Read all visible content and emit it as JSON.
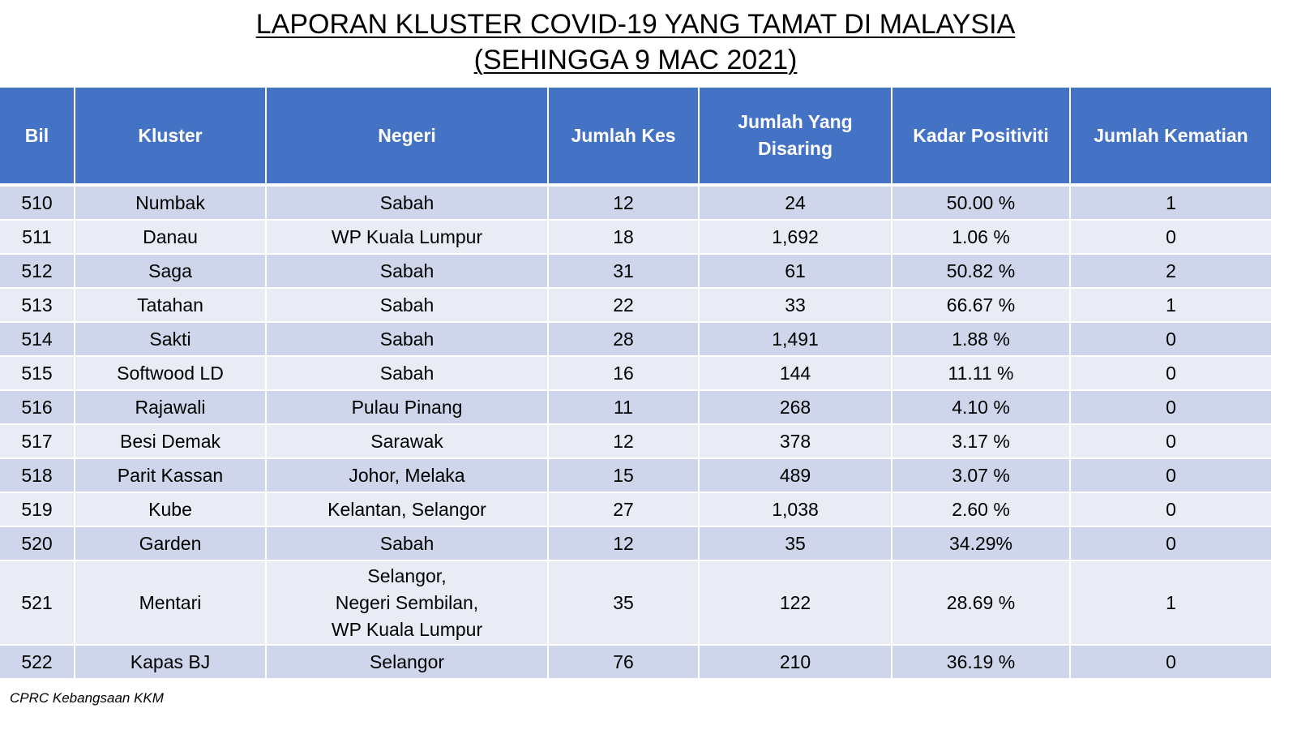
{
  "title": {
    "line1": "LAPORAN KLUSTER COVID-19 YANG TAMAT DI MALAYSIA",
    "line2": "(SEHINGGA 9 MAC 2021)"
  },
  "table": {
    "headers": {
      "bil": "Bil",
      "kluster": "Kluster",
      "negeri": "Negeri",
      "jumlah_kes": "Jumlah Kes",
      "jumlah_disaring_1": "Jumlah Yang",
      "jumlah_disaring_2": "Disaring",
      "kadar_positiviti": "Kadar Positiviti",
      "jumlah_kematian": "Jumlah Kematian"
    },
    "rows": [
      {
        "bil": "510",
        "kluster": "Numbak",
        "negeri": [
          "Sabah"
        ],
        "kes": "12",
        "disaring": "24",
        "positiviti": "50.00 %",
        "kematian": "1"
      },
      {
        "bil": "511",
        "kluster": "Danau",
        "negeri": [
          "WP Kuala Lumpur"
        ],
        "kes": "18",
        "disaring": "1,692",
        "positiviti": "1.06 %",
        "kematian": "0"
      },
      {
        "bil": "512",
        "kluster": "Saga",
        "negeri": [
          "Sabah"
        ],
        "kes": "31",
        "disaring": "61",
        "positiviti": "50.82 %",
        "kematian": "2"
      },
      {
        "bil": "513",
        "kluster": "Tatahan",
        "negeri": [
          "Sabah"
        ],
        "kes": "22",
        "disaring": "33",
        "positiviti": "66.67 %",
        "kematian": "1"
      },
      {
        "bil": "514",
        "kluster": "Sakti",
        "negeri": [
          "Sabah"
        ],
        "kes": "28",
        "disaring": "1,491",
        "positiviti": "1.88 %",
        "kematian": "0"
      },
      {
        "bil": "515",
        "kluster": "Softwood LD",
        "negeri": [
          "Sabah"
        ],
        "kes": "16",
        "disaring": "144",
        "positiviti": "11.11 %",
        "kematian": "0"
      },
      {
        "bil": "516",
        "kluster": "Rajawali",
        "negeri": [
          "Pulau Pinang"
        ],
        "kes": "11",
        "disaring": "268",
        "positiviti": "4.10 %",
        "kematian": "0"
      },
      {
        "bil": "517",
        "kluster": "Besi Demak",
        "negeri": [
          "Sarawak"
        ],
        "kes": "12",
        "disaring": "378",
        "positiviti": "3.17 %",
        "kematian": "0"
      },
      {
        "bil": "518",
        "kluster": "Parit Kassan",
        "negeri": [
          "Johor, Melaka"
        ],
        "kes": "15",
        "disaring": "489",
        "positiviti": "3.07 %",
        "kematian": "0"
      },
      {
        "bil": "519",
        "kluster": "Kube",
        "negeri": [
          "Kelantan, Selangor"
        ],
        "kes": "27",
        "disaring": "1,038",
        "positiviti": "2.60 %",
        "kematian": "0"
      },
      {
        "bil": "520",
        "kluster": "Garden",
        "negeri": [
          "Sabah"
        ],
        "kes": "12",
        "disaring": "35",
        "positiviti": "34.29%",
        "kematian": "0"
      },
      {
        "bil": "521",
        "kluster": "Mentari",
        "negeri": [
          "Selangor,",
          "Negeri Sembilan,",
          "WP Kuala Lumpur"
        ],
        "kes": "35",
        "disaring": "122",
        "positiviti": "28.69 %",
        "kematian": "1"
      },
      {
        "bil": "522",
        "kluster": "Kapas BJ",
        "negeri": [
          "Selangor"
        ],
        "kes": "76",
        "disaring": "210",
        "positiviti": "36.19 %",
        "kematian": "0"
      }
    ]
  },
  "colors": {
    "header_bg": "#4472c4",
    "row_odd": "#cfd5ea",
    "row_even": "#e9ebf5"
  },
  "footnote": "CPRC Kebangsaan KKM"
}
